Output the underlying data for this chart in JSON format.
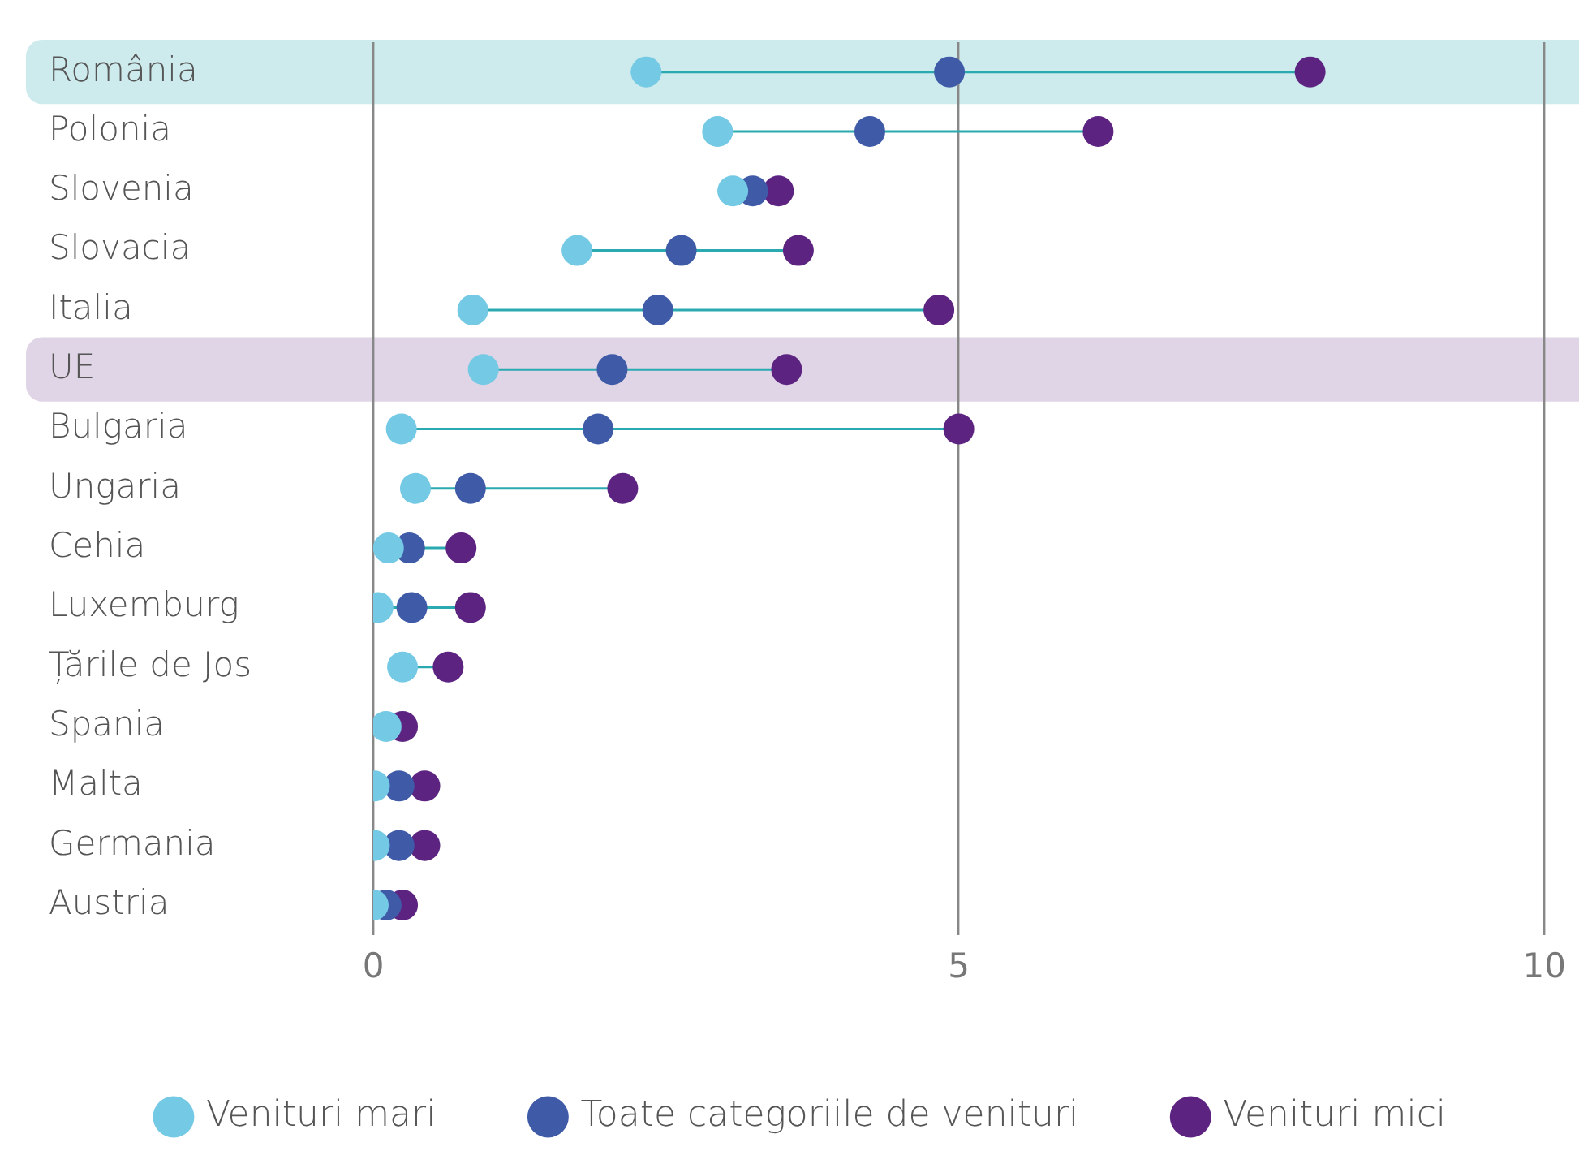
{
  "chart_data": {
    "type": "scatter",
    "orientation": "horizontal",
    "categories": [
      "România",
      "Polonia",
      "Slovenia",
      "Slovacia",
      "Italia",
      "UE",
      "Bulgaria",
      "Ungaria",
      "Cehia",
      "Luxemburg",
      "Țările de Jos",
      "Spania",
      "Malta",
      "Germania",
      "Austria"
    ],
    "series": [
      {
        "name": "Venituri mari",
        "color": "#74c9e4",
        "values": [
          2.33,
          2.94,
          3.07,
          1.74,
          0.85,
          0.94,
          0.24,
          0.36,
          0.13,
          0.04,
          0.25,
          0.11,
          0.01,
          0.01,
          0
        ]
      },
      {
        "name": "Toate categoriile de venituri",
        "color": "#3f5ba8",
        "values": [
          4.92,
          4.24,
          3.24,
          2.63,
          2.43,
          2.04,
          1.92,
          0.83,
          0.31,
          0.33,
          null,
          null,
          0.22,
          0.22,
          0.11
        ]
      },
      {
        "name": "Venituri mici",
        "color": "#5c2381",
        "values": [
          8.0,
          6.19,
          3.46,
          3.63,
          4.83,
          3.53,
          5.0,
          2.13,
          0.75,
          0.83,
          0.64,
          0.25,
          0.44,
          0.44,
          0.25
        ]
      }
    ],
    "xlim": [
      0,
      10
    ],
    "xticks": [
      0,
      5,
      10
    ],
    "grid": "x",
    "legend": "bottom",
    "marker": "circle",
    "bands": [
      {
        "axis": "y",
        "from": "România",
        "to": "România",
        "color": "#cdeaec"
      },
      {
        "axis": "y",
        "from": "UE",
        "to": "UE",
        "color": "#e0d5e6"
      }
    ]
  }
}
